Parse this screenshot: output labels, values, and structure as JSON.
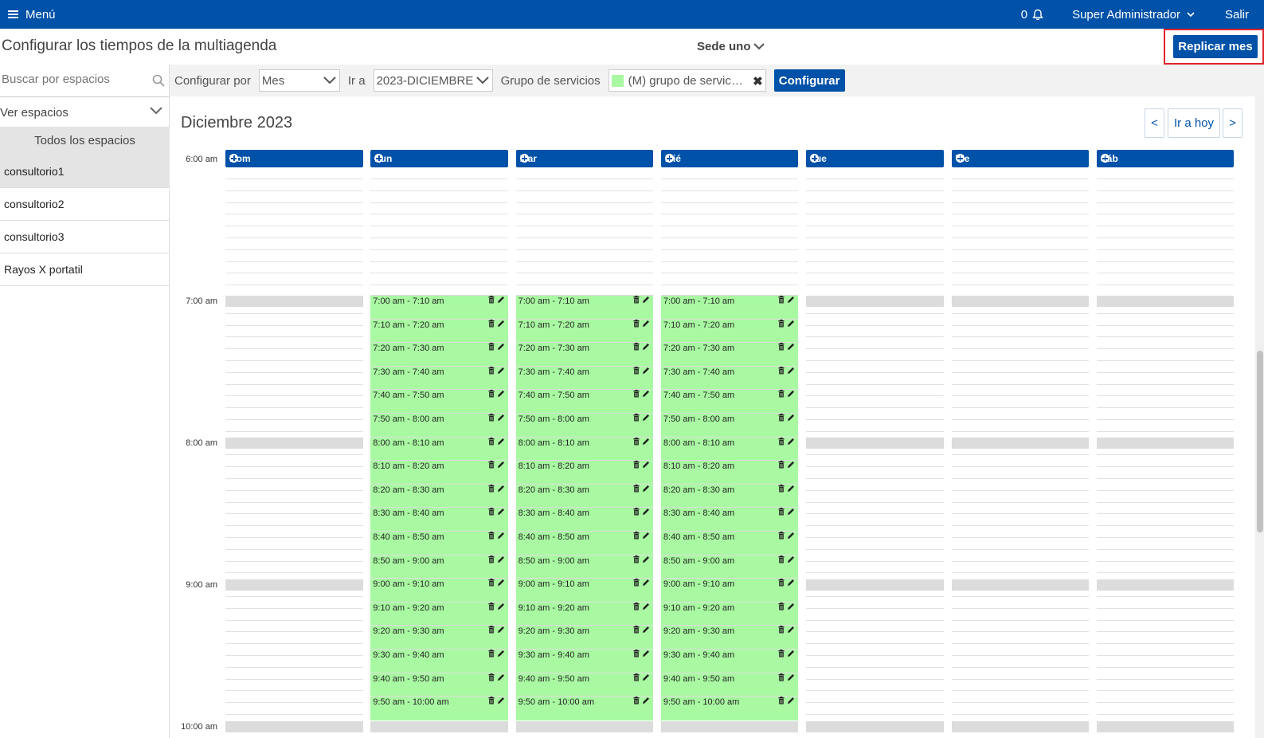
{
  "topbar": {
    "menu_label": "Menú",
    "notifications_count": "0",
    "user_name": "Super Administrador",
    "logout_label": "Salir",
    "brand_color": "#0051a8"
  },
  "header": {
    "title": "Configurar los tiempos de la multiagenda",
    "sede": "Sede uno",
    "replicate_button": "Replicar mes"
  },
  "sidebar": {
    "search_placeholder": "Buscar por espacios",
    "view_label": "Ver espacios",
    "all_spaces_label": "Todos los espacios",
    "spaces": [
      "consultorio1",
      "consultorio2",
      "consultorio3",
      "Rayos X portatil"
    ],
    "selected_space": "consultorio1"
  },
  "toolbar": {
    "configure_by_label": "Configurar por",
    "configure_by_value": "Mes",
    "goto_label": "Ir a",
    "goto_value": "2023-DICIEMBRE",
    "service_group_label": "Grupo de servicios",
    "service_group_value": "(M) grupo de servic…",
    "configure_button": "Configurar"
  },
  "calendar": {
    "month_title": "Diciembre 2023",
    "nav_prev": "<",
    "nav_today": "Ir a hoy",
    "nav_next": ">",
    "days": [
      "Dom",
      "Lun",
      "Mar",
      "Mié",
      "Jue",
      "Vie",
      "Sáb"
    ],
    "hours": [
      "6:00 am",
      "7:00 am",
      "8:00 am",
      "9:00 am",
      "10:00 am"
    ],
    "configured_days": [
      "Lun",
      "Mar",
      "Mié"
    ],
    "slot_color": "#a9f9a2",
    "slots": [
      "7:00 am - 7:10 am",
      "7:10 am - 7:20 am",
      "7:20 am - 7:30 am",
      "7:30 am - 7:40 am",
      "7:40 am - 7:50 am",
      "7:50 am - 8:00 am",
      "8:00 am - 8:10 am",
      "8:10 am - 8:20 am",
      "8:20 am - 8:30 am",
      "8:30 am - 8:40 am",
      "8:40 am - 8:50 am",
      "8:50 am - 9:00 am",
      "9:00 am - 9:10 am",
      "9:10 am - 9:20 am",
      "9:20 am - 9:30 am",
      "9:30 am - 9:40 am",
      "9:40 am - 9:50 am",
      "9:50 am - 10:00 am"
    ]
  }
}
